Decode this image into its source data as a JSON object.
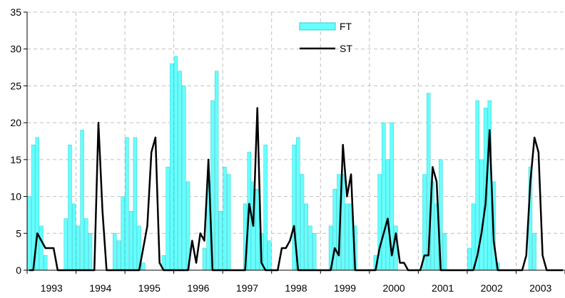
{
  "chart_data": {
    "type": "bar+line",
    "title": "",
    "xlabel": "",
    "ylabel": "",
    "ylim": [
      0,
      35
    ],
    "yticks": [
      0,
      5,
      10,
      15,
      20,
      25,
      30,
      35
    ],
    "years": [
      "1993",
      "1994",
      "1995",
      "1996",
      "1997",
      "1998",
      "1999",
      "2000",
      "2001",
      "2002",
      "2003"
    ],
    "months_total": 132,
    "grid": "dashed, both axes",
    "legend": "top-center",
    "colors": {
      "FT": "#66FFFF",
      "FT_edge": "#33CCCC",
      "ST": "#000000",
      "grid": "#C0C0C0"
    },
    "series": [
      {
        "name": "FT",
        "kind": "bar",
        "values": [
          10,
          17,
          18,
          6,
          2,
          0,
          0,
          0,
          0,
          7,
          17,
          9,
          6,
          19,
          7,
          5,
          0,
          0,
          0,
          0,
          0,
          5,
          4,
          10,
          18,
          8,
          18,
          6,
          1,
          0,
          0,
          0,
          0,
          2,
          14,
          28,
          29,
          27,
          25,
          12,
          0,
          0,
          0,
          3,
          12,
          23,
          27,
          8,
          14,
          13,
          0,
          0,
          0,
          9,
          16,
          12,
          11,
          5,
          17,
          4,
          0,
          0,
          0,
          0,
          0,
          17,
          18,
          13,
          9,
          6,
          5,
          0,
          0,
          0,
          6,
          11,
          13,
          13,
          9,
          9,
          6,
          0,
          0,
          0,
          0,
          2,
          13,
          20,
          15,
          20,
          6,
          0,
          0,
          0,
          0,
          0,
          0,
          13,
          24,
          12,
          9,
          15,
          5,
          0,
          0,
          0,
          0,
          0,
          3,
          9,
          23,
          15,
          22,
          23,
          12,
          1,
          0,
          0,
          0,
          0,
          0,
          0,
          0,
          14,
          5,
          0,
          0,
          0,
          0,
          0,
          0,
          0
        ]
      },
      {
        "name": "ST",
        "kind": "line",
        "values": [
          0,
          0,
          5,
          4,
          3,
          3,
          3,
          0,
          0,
          0,
          0,
          0,
          0,
          0,
          0,
          0,
          0,
          20,
          8,
          0,
          0,
          0,
          0,
          0,
          0,
          0,
          0,
          0,
          3,
          6,
          16,
          18,
          1,
          0,
          0,
          0,
          0,
          0,
          0,
          0,
          4,
          1,
          5,
          4,
          15,
          0,
          0,
          0,
          0,
          0,
          0,
          0,
          0,
          0,
          9,
          6,
          22,
          1,
          0,
          0,
          0,
          0,
          3,
          3,
          4,
          6,
          0,
          0,
          0,
          0,
          0,
          0,
          0,
          0,
          0,
          3,
          2,
          17,
          10,
          13,
          0,
          0,
          0,
          0,
          0,
          0,
          3,
          5,
          7,
          2,
          5,
          1,
          1,
          0,
          0,
          0,
          0,
          2,
          2,
          14,
          12,
          0,
          0,
          0,
          0,
          0,
          0,
          0,
          0,
          0,
          2,
          5,
          9,
          19,
          4,
          0,
          0,
          0,
          0,
          0,
          0,
          0,
          2,
          12,
          18,
          16,
          2,
          0,
          0,
          0,
          0,
          0
        ]
      }
    ]
  }
}
